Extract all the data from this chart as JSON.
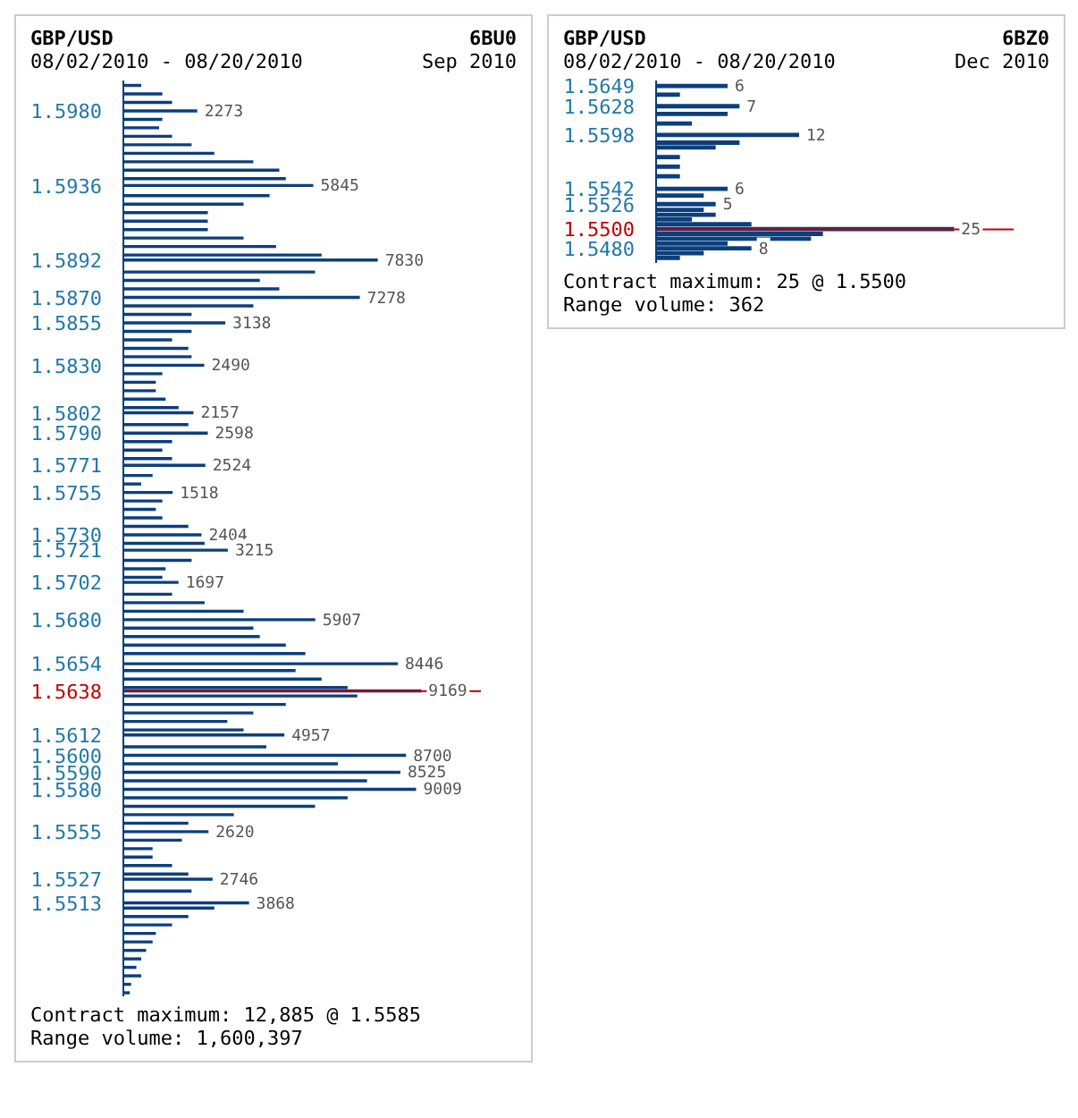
{
  "chart_data": [
    {
      "type": "bar",
      "orientation": "horizontal",
      "title": "GBP/USD",
      "subtitle": "08/02/2010 - 08/20/2010",
      "annotations": [
        "6BU0",
        "Sep 2010",
        "Contract maximum: 12,885 @ 1.5585",
        "Range volume: 1,600,397"
      ],
      "x": [
        1.5995,
        1.599,
        1.5985,
        1.598,
        1.5975,
        1.597,
        1.5965,
        1.596,
        1.5955,
        1.595,
        1.5945,
        1.594,
        1.5936,
        1.593,
        1.5925,
        1.592,
        1.5915,
        1.591,
        1.5905,
        1.59,
        1.5895,
        1.5892,
        1.5885,
        1.588,
        1.5875,
        1.587,
        1.5865,
        1.586,
        1.5855,
        1.585,
        1.5845,
        1.584,
        1.5835,
        1.583,
        1.5825,
        1.582,
        1.5815,
        1.581,
        1.5805,
        1.5802,
        1.5795,
        1.579,
        1.5785,
        1.578,
        1.5775,
        1.5771,
        1.5765,
        1.576,
        1.5755,
        1.575,
        1.5745,
        1.574,
        1.5735,
        1.573,
        1.5725,
        1.5721,
        1.5715,
        1.571,
        1.5705,
        1.5702,
        1.5695,
        1.569,
        1.5685,
        1.568,
        1.5675,
        1.567,
        1.5665,
        1.566,
        1.5654,
        1.565,
        1.5645,
        1.564,
        1.5638,
        1.5635,
        1.563,
        1.5625,
        1.562,
        1.5615,
        1.5612,
        1.5605,
        1.56,
        1.5595,
        1.559,
        1.5585,
        1.558,
        1.5575,
        1.557,
        1.5565,
        1.556,
        1.5555,
        1.555,
        1.5545,
        1.554,
        1.5535,
        1.553,
        1.5527,
        1.552,
        1.5513,
        1.551,
        1.5505,
        1.55,
        1.5495,
        1.549,
        1.5485,
        1.548,
        1.5475,
        1.547,
        1.5465,
        1.546
      ],
      "values": [
        550,
        1200,
        1500,
        2273,
        1200,
        1100,
        1500,
        2100,
        2800,
        4000,
        4800,
        5000,
        5845,
        4500,
        3700,
        2600,
        2600,
        2600,
        3700,
        4700,
        6100,
        7830,
        5900,
        4200,
        4800,
        7278,
        4000,
        2100,
        3138,
        2100,
        1500,
        2000,
        2100,
        2490,
        1200,
        1000,
        1000,
        1300,
        1700,
        2157,
        2000,
        2598,
        1500,
        1200,
        1500,
        2524,
        900,
        550,
        1518,
        1200,
        1000,
        1200,
        2000,
        2404,
        2500,
        3215,
        2100,
        1300,
        1200,
        1697,
        1500,
        2500,
        3700,
        5907,
        4000,
        4200,
        5000,
        5600,
        8446,
        5300,
        6100,
        6900,
        9169,
        7200,
        5000,
        4000,
        3200,
        3700,
        4957,
        4400,
        8700,
        6600,
        8525,
        7500,
        9009,
        6900,
        5900,
        3400,
        2000,
        2620,
        1800,
        900,
        900,
        1500,
        2000,
        2746,
        2100,
        3868,
        2800,
        2000,
        1500,
        1000,
        900,
        700,
        550,
        400,
        550,
        240,
        200
      ],
      "value_labels": [
        null,
        null,
        null,
        "2273",
        null,
        null,
        null,
        null,
        null,
        null,
        null,
        null,
        "5845",
        null,
        null,
        null,
        null,
        null,
        null,
        null,
        null,
        "7830",
        null,
        null,
        null,
        "7278",
        null,
        null,
        "3138",
        null,
        null,
        null,
        null,
        "2490",
        null,
        null,
        null,
        null,
        null,
        "2157",
        null,
        "2598",
        null,
        null,
        null,
        "2524",
        null,
        null,
        "1518",
        null,
        null,
        null,
        null,
        "2404",
        null,
        "3215",
        null,
        null,
        null,
        "1697",
        null,
        null,
        null,
        "5907",
        null,
        null,
        null,
        null,
        "8446",
        null,
        null,
        null,
        "9169",
        null,
        null,
        null,
        null,
        null,
        "4957",
        null,
        "8700",
        null,
        "8525",
        null,
        "9009",
        null,
        null,
        null,
        null,
        "2620",
        null,
        null,
        null,
        null,
        null,
        "2746",
        null,
        "3868",
        null,
        null,
        null,
        null,
        null,
        null,
        null,
        null,
        null,
        null,
        null
      ],
      "color": "#0b3f7d",
      "ylim": [
        1.5458,
        1.5998
      ],
      "yticks": [
        {
          "value": 1.598,
          "label": "1.5980"
        },
        1.5936,
        1.5892,
        {
          "value": 1.587,
          "label": "1.5870"
        },
        1.5855,
        {
          "value": 1.583,
          "label": "1.5830"
        },
        1.5802,
        {
          "value": 1.579,
          "label": "1.5790"
        },
        1.5771,
        1.5755,
        {
          "value": 1.573,
          "label": "1.5730"
        },
        1.5721,
        1.5702,
        {
          "value": 1.568,
          "label": "1.5680"
        },
        1.5654,
        1.5638,
        1.5612,
        {
          "value": 1.56,
          "label": "1.5600"
        },
        {
          "value": 1.559,
          "label": "1.5590"
        },
        {
          "value": 1.558,
          "label": "1.5580"
        },
        1.5555,
        1.5527,
        1.5513
      ],
      "ref_lines": [
        {
          "axis": "y",
          "value": 1.5638,
          "color": "#c00000"
        }
      ]
    },
    {
      "type": "bar",
      "orientation": "horizontal",
      "title": "GBP/USD",
      "subtitle": "08/02/2010 - 08/20/2010",
      "annotations": [
        "6BZ0",
        "Dec 2010",
        "Contract maximum: 25 @ 1.5500",
        "Range volume: 362"
      ],
      "x": [
        1.5649,
        1.564,
        1.5628,
        1.562,
        1.561,
        1.5598,
        1.559,
        1.5585,
        1.5575,
        1.5565,
        1.5555,
        1.5542,
        1.5535,
        1.5526,
        1.552,
        1.5515,
        1.551,
        1.5505,
        1.55,
        1.5495,
        1.549,
        1.5485,
        1.548,
        1.5475,
        1.547
      ],
      "values": [
        6,
        2,
        7,
        6,
        3,
        12,
        7,
        5,
        2,
        2,
        2,
        6,
        4,
        5,
        4,
        5,
        3,
        8,
        25,
        14,
        13,
        6,
        8,
        4,
        2
      ],
      "value_labels": [
        "6",
        null,
        "7",
        null,
        null,
        "12",
        null,
        null,
        null,
        null,
        null,
        "6",
        null,
        "5",
        null,
        null,
        null,
        null,
        "25",
        null,
        null,
        null,
        "8",
        null,
        null
      ],
      "color": "#0b3f7d",
      "ylim": [
        1.5465,
        1.5655
      ],
      "yticks": [
        1.5649,
        1.5628,
        1.5598,
        1.5542,
        1.5526,
        {
          "value": 1.55,
          "label": "1.5500"
        },
        {
          "value": 1.548,
          "label": "1.5480"
        }
      ],
      "ref_lines": [
        {
          "axis": "y",
          "value": 1.55,
          "color": "#c00000"
        }
      ]
    }
  ]
}
